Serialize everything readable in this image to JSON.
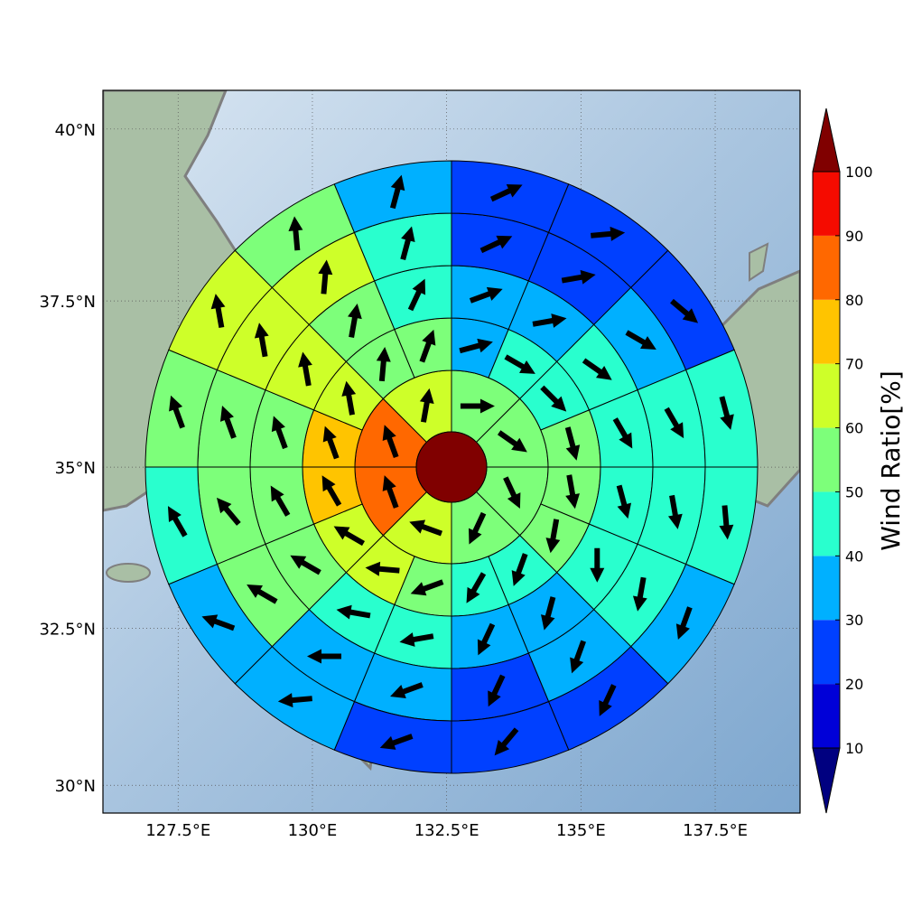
{
  "chart_data": {
    "type": "polar",
    "xlim": [
      126.1,
      139.08
    ],
    "ylim": [
      29.55,
      40.55
    ],
    "grid": true,
    "xticks": [
      {
        "value": 127.5,
        "label": "127.5°E"
      },
      {
        "value": 130,
        "label": "130°E"
      },
      {
        "value": 132.5,
        "label": "132.5°E"
      },
      {
        "value": 135,
        "label": "135°E"
      },
      {
        "value": 137.5,
        "label": "137.5°E"
      }
    ],
    "yticks": [
      {
        "value": 30,
        "label": "30°N"
      },
      {
        "value": 32.5,
        "label": "32.5°N"
      },
      {
        "value": 35,
        "label": "35°N"
      },
      {
        "value": 37.5,
        "label": "37.5°N"
      },
      {
        "value": 40,
        "label": "40°N"
      }
    ],
    "center": {
      "value": 105
    },
    "rings": [
      {
        "values": [
          55,
          55,
          55,
          55,
          65,
          85,
          85,
          65
        ],
        "directions": [
          90,
          125,
          155,
          205,
          290,
          340,
          340,
          10
        ]
      },
      {
        "values": [
          35,
          45,
          45,
          55,
          55,
          55,
          45,
          45,
          55,
          65,
          65,
          75,
          75,
          65,
          55,
          55
        ],
        "directions": [
          75,
          120,
          135,
          165,
          170,
          190,
          200,
          210,
          250,
          275,
          300,
          330,
          340,
          350,
          5,
          20
        ]
      },
      {
        "values": [
          35,
          35,
          45,
          45,
          45,
          45,
          35,
          35,
          45,
          45,
          55,
          55,
          55,
          65,
          55,
          45
        ],
        "directions": [
          70,
          80,
          125,
          150,
          165,
          180,
          195,
          205,
          260,
          280,
          300,
          330,
          340,
          350,
          10,
          25
        ]
      },
      {
        "values": [
          25,
          25,
          35,
          45,
          45,
          45,
          35,
          25,
          35,
          35,
          55,
          55,
          55,
          65,
          65,
          45
        ],
        "directions": [
          65,
          80,
          120,
          150,
          170,
          190,
          200,
          205,
          250,
          270,
          300,
          320,
          340,
          350,
          5,
          15
        ]
      },
      {
        "values": [
          25,
          25,
          25,
          45,
          45,
          35,
          25,
          25,
          25,
          35,
          35,
          45,
          55,
          65,
          55,
          35
        ],
        "directions": [
          65,
          85,
          130,
          165,
          175,
          200,
          205,
          220,
          250,
          265,
          290,
          330,
          340,
          350,
          355,
          15
        ]
      }
    ],
    "colorbar": {
      "label": "Wind Ratio[%]",
      "ticks": [
        10,
        20,
        30,
        40,
        50,
        60,
        70,
        80,
        90,
        100
      ],
      "colors": [
        "#0000d8",
        "#0040ff",
        "#00b0ff",
        "#29ffce",
        "#7dff7a",
        "#ceff29",
        "#ffc400",
        "#ff6800",
        "#f50b00"
      ],
      "under_color": "#000080",
      "over_color": "#800000"
    }
  }
}
